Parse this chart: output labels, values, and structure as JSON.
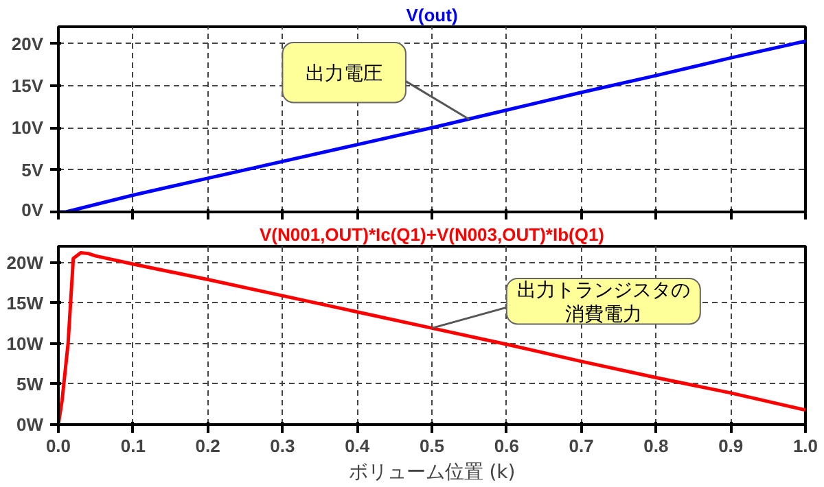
{
  "chart_data": [
    {
      "type": "line",
      "title": "V(out)",
      "x": [
        0,
        0.01,
        0.1,
        0.2,
        0.3,
        0.4,
        0.5,
        0.6,
        0.7,
        0.8,
        0.9,
        1.0
      ],
      "series": [
        {
          "color": "#0000ff",
          "values": [
            0,
            0,
            2,
            4,
            6,
            8,
            10,
            12.1,
            14.2,
            16.2,
            18.3,
            20.3
          ]
        }
      ],
      "xlim": [
        0,
        1
      ],
      "xticks": [
        0,
        0.1,
        0.2,
        0.3,
        0.4,
        0.5,
        0.6,
        0.7,
        0.8,
        0.9,
        1
      ],
      "ylim": [
        0,
        22
      ],
      "yticks": [
        {
          "value": 0,
          "label": "0V"
        },
        {
          "value": 5,
          "label": "5V"
        },
        {
          "value": 10,
          "label": "10V"
        },
        {
          "value": 15,
          "label": "15V"
        },
        {
          "value": 20,
          "label": "20V"
        }
      ],
      "tick_labels": "y",
      "grid": true,
      "line_style": "solid",
      "marker": "none",
      "annotations": [
        {
          "text": "出力電圧",
          "x": 0.55,
          "y": 11.0
        }
      ]
    },
    {
      "type": "line",
      "title": "V(N001,OUT)*Ic(Q1)+V(N003,OUT)*Ib(Q1)",
      "xlabel": "ボリューム位置 (k)",
      "x": [
        0,
        0.005,
        0.013,
        0.02,
        0.03,
        0.04,
        0.05,
        0.1,
        0.2,
        0.3,
        0.4,
        0.5,
        0.6,
        0.7,
        0.8,
        0.9,
        1.0
      ],
      "series": [
        {
          "color": "#ff0000",
          "values": [
            0,
            3,
            10,
            20.5,
            21.2,
            21.1,
            20.8,
            19.8,
            17.9,
            15.9,
            13.9,
            11.9,
            9.9,
            7.8,
            5.8,
            3.9,
            1.8
          ]
        }
      ],
      "xlim": [
        0,
        1
      ],
      "xticks": [
        {
          "value": 0,
          "label": "0.0"
        },
        {
          "value": 0.1,
          "label": "0.1"
        },
        {
          "value": 0.2,
          "label": "0.2"
        },
        {
          "value": 0.3,
          "label": "0.3"
        },
        {
          "value": 0.4,
          "label": "0.4"
        },
        {
          "value": 0.5,
          "label": "0.5"
        },
        {
          "value": 0.6,
          "label": "0.6"
        },
        {
          "value": 0.7,
          "label": "0.7"
        },
        {
          "value": 0.8,
          "label": "0.8"
        },
        {
          "value": 0.9,
          "label": "0.9"
        },
        {
          "value": 1,
          "label": "1.0"
        }
      ],
      "ylim": [
        0,
        22
      ],
      "yticks": [
        {
          "value": 0,
          "label": "0W"
        },
        {
          "value": 5,
          "label": "5W"
        },
        {
          "value": 10,
          "label": "10W"
        },
        {
          "value": 15,
          "label": "15W"
        },
        {
          "value": 20,
          "label": "20W"
        }
      ],
      "grid": true,
      "line_style": "solid",
      "marker": "none",
      "annotations": [
        {
          "text": "出力トランジスタの消費電力",
          "x": 0.5,
          "y": 11.9
        }
      ]
    }
  ]
}
